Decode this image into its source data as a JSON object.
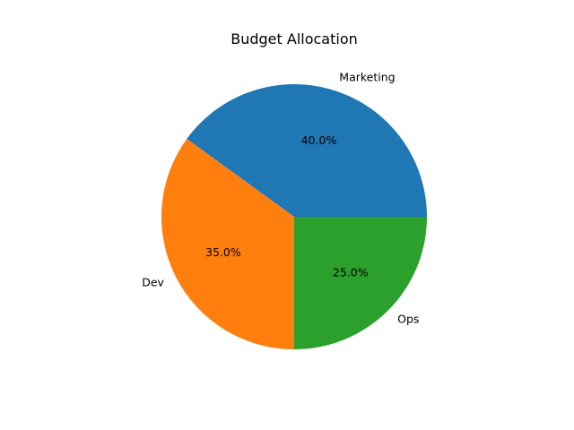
{
  "chart_data": {
    "type": "pie",
    "title": "Budget Allocation",
    "start_angle": 0,
    "direction": "counterclockwise",
    "slices": [
      {
        "label": "Marketing",
        "value": 40,
        "percent_label": "40.0%",
        "color": "#1f77b4"
      },
      {
        "label": "Dev",
        "value": 35,
        "percent_label": "35.0%",
        "color": "#ff7f0e"
      },
      {
        "label": "Ops",
        "value": 25,
        "percent_label": "25.0%",
        "color": "#2ca02c"
      }
    ]
  }
}
